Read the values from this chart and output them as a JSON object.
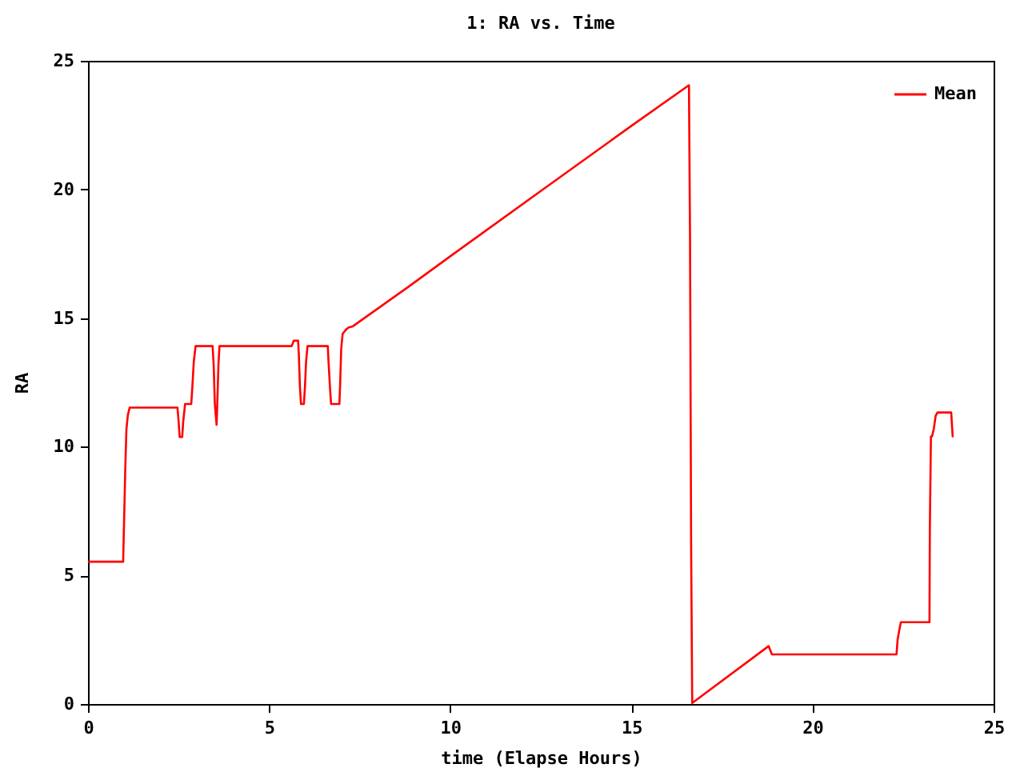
{
  "chart_data": {
    "type": "line",
    "title": "1: RA vs. Time",
    "xlabel": "time (Elapse Hours)",
    "ylabel": "RA",
    "x": [
      0,
      0.97,
      0.99,
      1.03,
      1.06,
      1.1,
      1.15,
      2.47,
      2.5,
      2.53,
      2.6,
      2.63,
      2.68,
      2.85,
      2.88,
      2.92,
      2.97,
      3.44,
      3.47,
      3.5,
      3.55,
      3.57,
      3.6,
      3.63,
      5.62,
      5.68,
      5.8,
      5.82,
      5.85,
      5.88,
      5.96,
      5.99,
      6.02,
      6.06,
      6.62,
      6.64,
      6.68,
      6.71,
      6.94,
      6.96,
      6.99,
      7.03,
      7.12,
      7.2,
      7.31,
      8.85,
      10,
      12.5,
      15,
      16.59,
      16.62,
      16.65,
      16.68,
      18.79,
      18.88,
      22.32,
      22.35,
      22.4,
      22.44,
      23.23,
      23.24,
      23.27,
      23.3,
      23.35,
      23.4,
      23.45,
      23.83,
      23.85,
      23.87
    ],
    "series": [
      {
        "name": "Mean",
        "color": "#ff0000",
        "values": [
          5.53,
          5.53,
          6.74,
          9.19,
          10.67,
          11.23,
          11.52,
          11.52,
          11.0,
          10.38,
          10.38,
          11.0,
          11.66,
          11.66,
          12.3,
          13.3,
          13.91,
          13.91,
          13.16,
          11.69,
          10.85,
          11.69,
          13.16,
          13.91,
          13.91,
          14.12,
          14.12,
          13.6,
          12.35,
          11.66,
          11.66,
          12.35,
          13.3,
          13.91,
          13.91,
          13.3,
          12.3,
          11.66,
          11.66,
          12.4,
          13.8,
          14.39,
          14.55,
          14.64,
          14.68,
          16.22,
          17.4,
          19.94,
          22.47,
          24.05,
          18.05,
          6.07,
          0.04,
          2.25,
          1.93,
          1.93,
          2.5,
          2.9,
          3.18,
          3.18,
          6.82,
          10.4,
          10.4,
          10.7,
          11.2,
          11.33,
          11.33,
          10.85,
          10.4
        ]
      }
    ],
    "xlim": [
      0,
      25
    ],
    "xticks": [
      0,
      5,
      10,
      15,
      20,
      25
    ],
    "ylim": [
      0,
      25
    ],
    "yticks": [
      0,
      5,
      10,
      15,
      20,
      25
    ],
    "grid": false,
    "legend": "top right",
    "line_style": "solid"
  }
}
